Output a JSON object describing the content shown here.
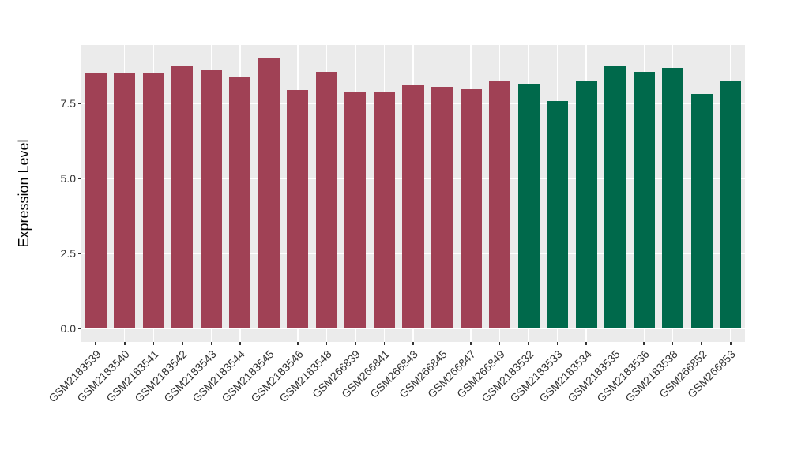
{
  "figure": {
    "background": "#FFFFFF"
  },
  "chart_data": {
    "type": "bar",
    "title": "",
    "xlabel": "",
    "ylabel": "Expression Level",
    "ylim": [
      -0.45,
      9.45
    ],
    "grid": true,
    "legend_position": "none",
    "panel_background": "#EBEBEB",
    "grid_color": "#FFFFFF",
    "axis_text_color": "#333333",
    "ytick_values": [
      0.0,
      2.5,
      5.0,
      7.5
    ],
    "ytick_labels": [
      "0.0",
      "2.5",
      "5.0",
      "7.5"
    ],
    "minor_ytick_values": [
      1.25,
      3.75,
      6.25,
      8.75
    ],
    "palette": {
      "maroon": "#A04155",
      "green": "#00694B"
    },
    "categories": [
      "GSM2183539",
      "GSM2183540",
      "GSM2183541",
      "GSM2183542",
      "GSM2183543",
      "GSM2183544",
      "GSM2183545",
      "GSM2183546",
      "GSM2183548",
      "GSM266839",
      "GSM266841",
      "GSM266843",
      "GSM266845",
      "GSM266847",
      "GSM266849",
      "GSM2183532",
      "GSM2183533",
      "GSM2183534",
      "GSM2183535",
      "GSM2183536",
      "GSM2183538",
      "GSM266852",
      "GSM266853"
    ],
    "values": [
      8.52,
      8.49,
      8.54,
      8.74,
      8.61,
      8.4,
      9.0,
      7.96,
      8.56,
      7.86,
      7.87,
      8.11,
      8.05,
      7.98,
      8.24,
      8.14,
      7.57,
      8.26,
      8.74,
      8.55,
      8.69,
      7.82,
      8.26
    ],
    "bar_color_keys": [
      "maroon",
      "maroon",
      "maroon",
      "maroon",
      "maroon",
      "maroon",
      "maroon",
      "maroon",
      "maroon",
      "maroon",
      "maroon",
      "maroon",
      "maroon",
      "maroon",
      "maroon",
      "green",
      "green",
      "green",
      "green",
      "green",
      "green",
      "green",
      "green"
    ]
  }
}
